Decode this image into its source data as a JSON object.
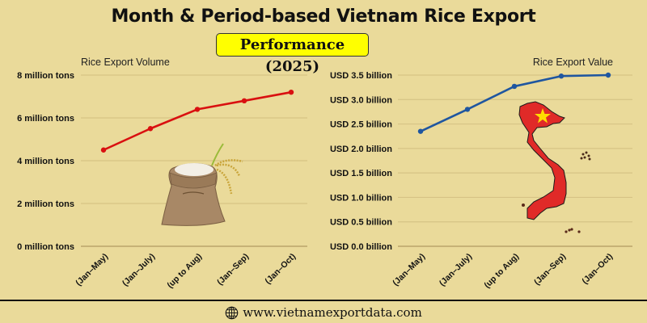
{
  "header": {
    "title": "Month & Period-based Vietnam Rice Export",
    "subtitle": "Performance (2025)"
  },
  "footer": {
    "icon": "globe-icon",
    "url": "www.vietnamexportdata.com"
  },
  "colors": {
    "background": "#eada9a",
    "volume_line": "#d91010",
    "value_line": "#1f56a0",
    "subtitle_bg": "#ffff00",
    "grid": "#d4c082"
  },
  "chart_data": [
    {
      "type": "line",
      "title": "Rice Export Volume",
      "xlabel": "",
      "ylabel": "",
      "categories": [
        "(Jan–May)",
        "(Jan–July)",
        "(up to Aug)",
        "(Jan–Sep)",
        "(Jan–Oct)"
      ],
      "series": [
        {
          "name": "Rice Export Volume",
          "values": [
            4.5,
            5.5,
            6.4,
            6.8,
            7.2
          ],
          "unit": "million tons",
          "color": "#d91010"
        }
      ],
      "yticks": [
        "0 million tons",
        "2 million tons",
        "4 million tons",
        "6 million tons",
        "8 million tons"
      ],
      "ylim": [
        0,
        8
      ],
      "grid": true,
      "legend": "none",
      "decoration": "rice-sack-image"
    },
    {
      "type": "line",
      "title": "Rice Export Value",
      "xlabel": "",
      "ylabel": "",
      "categories": [
        "(Jan–May)",
        "(Jan–July)",
        "(up to Aug)",
        "(Jan–Sep)",
        "(Jan–Oct)"
      ],
      "series": [
        {
          "name": "Rice Export Value",
          "values": [
            2.35,
            2.8,
            3.27,
            3.48,
            3.5
          ],
          "unit": "USD billion",
          "color": "#1f56a0"
        }
      ],
      "yticks": [
        "USD 0.0 billion",
        "USD 0.5 billion",
        "USD 1.0 billion",
        "USD 1.5 billion",
        "USD 2.0 billion",
        "USD 2.5 billion",
        "USD 3.0 billion",
        "USD 3.5 billion"
      ],
      "ylim": [
        0,
        3.5
      ],
      "grid": true,
      "legend": "none",
      "decoration": "vietnam-map-image"
    }
  ]
}
